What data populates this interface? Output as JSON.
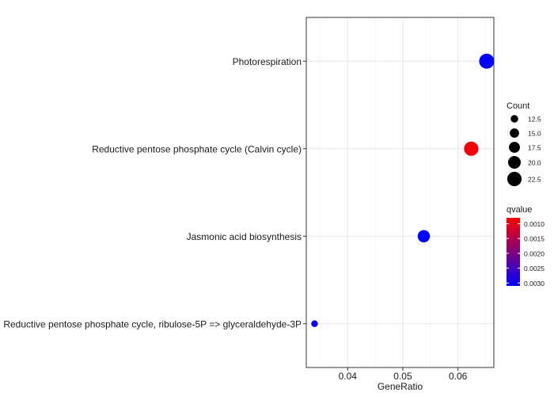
{
  "chart_data": {
    "type": "scatter",
    "xlabel": "GeneRatio",
    "ylabel": "",
    "xlim": [
      0.0325,
      0.0665
    ],
    "x_ticks": [
      0.04,
      0.05,
      0.06
    ],
    "x_tick_labels": [
      "0.04",
      "0.05",
      "0.06"
    ],
    "grid": true,
    "categories": [
      "Photorespiration",
      "Reductive pentose phosphate cycle (Calvin cycle)",
      "Jasmonic acid biosynthesis",
      "Reductive pentose phosphate cycle, ribulose-5P => glyceraldehyde-3P"
    ],
    "points": [
      {
        "term": "Photorespiration",
        "x": 0.0652,
        "count": 23,
        "qvalue": 0.0031
      },
      {
        "term": "Reductive pentose phosphate cycle (Calvin cycle)",
        "x": 0.0624,
        "count": 22,
        "qvalue": 0.0009
      },
      {
        "term": "Jasmonic acid biosynthesis",
        "x": 0.0538,
        "count": 19,
        "qvalue": 0.0031
      },
      {
        "term": "Reductive pentose phosphate cycle, ribulose-5P => glyceraldehyde-3P",
        "x": 0.034,
        "count": 11,
        "qvalue": 0.0031
      }
    ],
    "size_legend": {
      "title": "Count",
      "breaks": [
        12.5,
        15.0,
        17.5,
        20.0,
        22.5
      ],
      "labels": [
        "12.5",
        "15.0",
        "17.5",
        "20.0",
        "22.5"
      ]
    },
    "color_legend": {
      "title": "qvalue",
      "min": 0.0008,
      "max": 0.0031,
      "breaks": [
        0.001,
        0.0015,
        0.002,
        0.0025,
        0.003
      ],
      "labels": [
        "0.0010",
        "0.0015",
        "0.0020",
        "0.0025",
        "0.0030"
      ],
      "low_color": "#ff0000",
      "high_color": "#0000ff"
    },
    "legend_position": "right"
  }
}
